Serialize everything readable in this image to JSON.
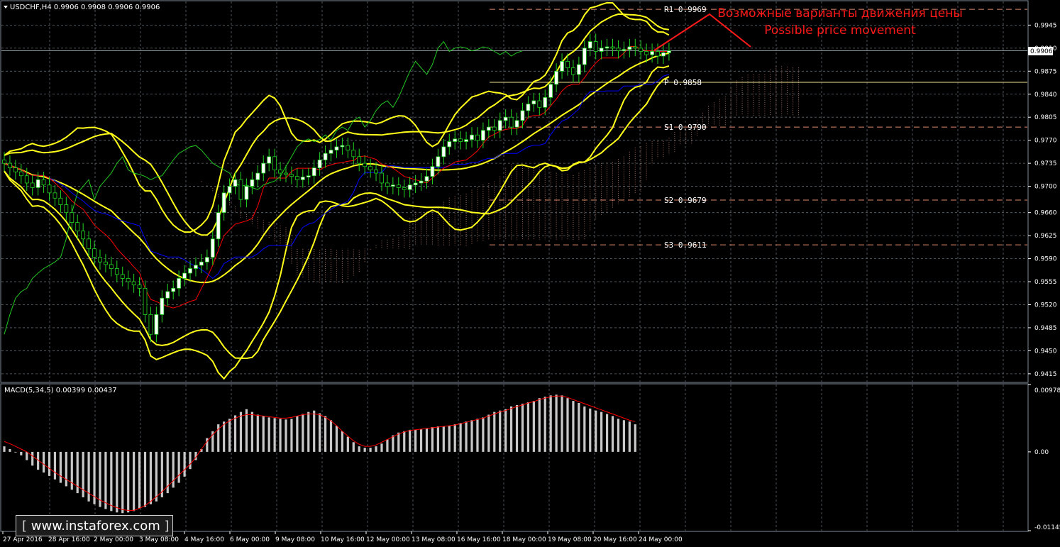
{
  "header": {
    "symbol_info": "USDCHF,H4  0.9906 0.9908 0.9906 0.9906"
  },
  "macd_header": "MACD(5,34,5) 0.00399 0.00437",
  "watermark": "www.instaforex.com",
  "current_price_label": "0.9906",
  "annotation": {
    "line_ru": "Возможные варианты движения цены",
    "line_en": "Possible price movement"
  },
  "colors": {
    "background": "#000000",
    "grid": "#5f6a73",
    "bollinger": "#ffff1a",
    "pivot": "#e08a6d",
    "bull_candle": "#ffffff",
    "bear_candle": "#000000",
    "candle_outline": "#22d622",
    "kijun": "#0000ff",
    "tenkan": "#ff0000",
    "chikou": "#22c822",
    "cloud": "#a06a5f",
    "macd_hist": "#c8c8c8",
    "macd_signal": "#ff0000",
    "annotation": "#ff1a1a"
  },
  "chart_data": [
    {
      "type": "candlestick",
      "yaxis_ticks": [
        "0.9945",
        "0.9910",
        "0.9875",
        "0.9840",
        "0.9805",
        "0.9770",
        "0.9735",
        "0.9700",
        "0.9660",
        "0.9625",
        "0.9590",
        "0.9555",
        "0.9520",
        "0.9485",
        "0.9450",
        "0.9415"
      ],
      "xaxis_ticks": [
        "27 Apr 2016",
        "28 Apr 16:00",
        "2 May 00:00",
        "3 May 08:00",
        "4 May 16:00",
        "6 May 00:00",
        "9 May 08:00",
        "10 May 16:00",
        "12 May 00:00",
        "13 May 08:00",
        "16 May 16:00",
        "18 May 00:00",
        "19 May 08:00",
        "20 May 16:00",
        "24 May 00:00"
      ],
      "ylim": [
        0.9403,
        0.9981
      ],
      "levels": [
        {
          "name": "R1",
          "value": 0.9969,
          "label": "R1  0.9969"
        },
        {
          "name": "P",
          "value": 0.9858,
          "label": "P  0.9858"
        },
        {
          "name": "S1",
          "value": 0.979,
          "label": "S1  0.9790"
        },
        {
          "name": "S2",
          "value": 0.9679,
          "label": "S2  0.9679"
        },
        {
          "name": "S3",
          "value": 0.9611,
          "label": "S3  0.9611"
        }
      ],
      "close": [
        0.9735,
        0.9728,
        0.9722,
        0.9716,
        0.9705,
        0.9698,
        0.971,
        0.9702,
        0.969,
        0.9682,
        0.9672,
        0.966,
        0.9645,
        0.9632,
        0.962,
        0.9605,
        0.9592,
        0.9585,
        0.9581,
        0.9575,
        0.9566,
        0.956,
        0.9555,
        0.955,
        0.9545,
        0.9505,
        0.9475,
        0.9505,
        0.953,
        0.954,
        0.9545,
        0.956,
        0.9568,
        0.9575,
        0.958,
        0.9585,
        0.9592,
        0.962,
        0.966,
        0.969,
        0.97,
        0.971,
        0.968,
        0.97,
        0.971,
        0.972,
        0.9735,
        0.9745,
        0.9725,
        0.972,
        0.9718,
        0.9715,
        0.971,
        0.9714,
        0.9716,
        0.9728,
        0.974,
        0.975,
        0.9755,
        0.976,
        0.9762,
        0.9755,
        0.9745,
        0.9735,
        0.973,
        0.9725,
        0.972,
        0.9705,
        0.97,
        0.9702,
        0.9698,
        0.9695,
        0.9702,
        0.9705,
        0.9708,
        0.9715,
        0.973,
        0.9745,
        0.976,
        0.9768,
        0.9772,
        0.9768,
        0.9771,
        0.9778,
        0.977,
        0.9785,
        0.979,
        0.9785,
        0.98,
        0.9805,
        0.979,
        0.98,
        0.9815,
        0.9825,
        0.983,
        0.982,
        0.9835,
        0.9855,
        0.9875,
        0.989,
        0.988,
        0.987,
        0.9885,
        0.991,
        0.992,
        0.9905,
        0.991,
        0.9912,
        0.991,
        0.9906,
        0.9908,
        0.9912,
        0.991,
        0.9905,
        0.99,
        0.9905,
        0.9898,
        0.9903,
        0.9906
      ]
    },
    {
      "type": "bar",
      "name": "MACD(5,34,5)",
      "yaxis_ticks": [
        "0.00978",
        "0.00",
        "-0.01145"
      ],
      "ylim": [
        -0.01145,
        0.00978
      ],
      "values": [
        0.0008,
        0.0004,
        0.0,
        -0.0005,
        -0.0012,
        -0.002,
        -0.0026,
        -0.003,
        -0.0035,
        -0.004,
        -0.0045,
        -0.005,
        -0.0055,
        -0.006,
        -0.0066,
        -0.0072,
        -0.0076,
        -0.008,
        -0.0083,
        -0.0086,
        -0.0088,
        -0.0089,
        -0.0088,
        -0.0086,
        -0.0082,
        -0.008,
        -0.0076,
        -0.0072,
        -0.0066,
        -0.006,
        -0.0052,
        -0.0045,
        -0.0036,
        -0.0025,
        -0.0012,
        0.0004,
        0.002,
        0.003,
        0.004,
        0.0044,
        0.0048,
        0.0053,
        0.0058,
        0.0062,
        0.0058,
        0.0054,
        0.0052,
        0.005,
        0.0049,
        0.0048,
        0.0047,
        0.0048,
        0.0052,
        0.0055,
        0.0058,
        0.006,
        0.0056,
        0.0052,
        0.0046,
        0.0038,
        0.003,
        0.0022,
        0.0014,
        0.0008,
        0.0006,
        0.0006,
        0.0008,
        0.0012,
        0.0018,
        0.0024,
        0.0028,
        0.003,
        0.0032,
        0.0032,
        0.0033,
        0.0034,
        0.0036,
        0.0037,
        0.0037,
        0.0038,
        0.004,
        0.0042,
        0.0044,
        0.0046,
        0.0048,
        0.005,
        0.0054,
        0.0058,
        0.006,
        0.0062,
        0.0066,
        0.0068,
        0.007,
        0.0072,
        0.0074,
        0.0078,
        0.008,
        0.0082,
        0.0083,
        0.0082,
        0.0078,
        0.0074,
        0.0071,
        0.0066,
        0.0063,
        0.006,
        0.0058,
        0.0055,
        0.0052,
        0.0048,
        0.0046,
        0.0044,
        0.004
      ],
      "signal": [
        0.0015,
        0.0012,
        0.0008,
        0.0004,
        0.0,
        -0.0006,
        -0.0012,
        -0.0018,
        -0.0024,
        -0.003,
        -0.0035,
        -0.004,
        -0.0045,
        -0.005,
        -0.0055,
        -0.006,
        -0.0065,
        -0.007,
        -0.0074,
        -0.0078,
        -0.0081,
        -0.0084,
        -0.0085,
        -0.0085,
        -0.0082,
        -0.0078,
        -0.0072,
        -0.0065,
        -0.0058,
        -0.005,
        -0.0042,
        -0.0034,
        -0.0026,
        -0.0018,
        -0.0008,
        0.0004,
        0.0015,
        0.0025,
        0.0033,
        0.004,
        0.0045,
        0.0049,
        0.0052,
        0.0054,
        0.0054,
        0.0053,
        0.0052,
        0.0051,
        0.005,
        0.0049,
        0.0049,
        0.005,
        0.0052,
        0.0054,
        0.0055,
        0.0055,
        0.0054,
        0.005,
        0.0045,
        0.0038,
        0.003,
        0.0023,
        0.0016,
        0.0011,
        0.0008,
        0.0008,
        0.001,
        0.0014,
        0.0018,
        0.0022,
        0.0026,
        0.0029,
        0.0031,
        0.0032,
        0.0033,
        0.0034,
        0.0035,
        0.0036,
        0.0037,
        0.0038,
        0.0039,
        0.0041,
        0.0043,
        0.0045,
        0.0047,
        0.0049,
        0.0052,
        0.0055,
        0.0058,
        0.006,
        0.0063,
        0.0066,
        0.0068,
        0.0071,
        0.0073,
        0.0076,
        0.0078,
        0.008,
        0.0081,
        0.0081,
        0.0079,
        0.0076,
        0.0073,
        0.007,
        0.0067,
        0.0064,
        0.0061,
        0.0058,
        0.0055,
        0.0052,
        0.0049,
        0.0046,
        0.0044
      ]
    }
  ]
}
